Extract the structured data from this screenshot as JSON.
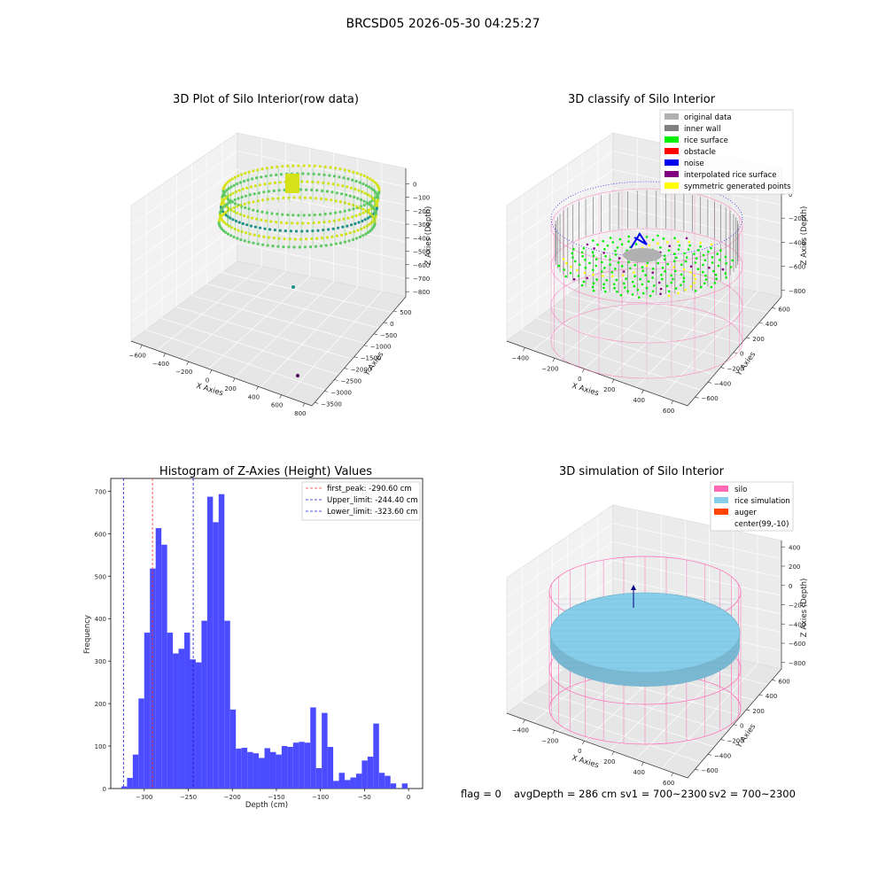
{
  "figure": {
    "title": "BRCSD05 2026-05-30 04:25:27",
    "footer": {
      "flag": "flag = 0",
      "avg_depth": "avgDepth = 286 cm",
      "sv1": "sv1 = 700~2300",
      "sv2": "sv2 = 700~2300"
    }
  },
  "colors": {
    "histogram_bar": "#4b4bff",
    "first_peak_line": "#ff3030",
    "limit_lines": "#1a1acc",
    "silo_wire": "#ff69b4",
    "rice_simulation": "#87ceeb",
    "auger": "#ff4500",
    "viridis_high": "#d5e21a",
    "viridis_mid": "#5ec962",
    "viridis_low": "#21918c",
    "viridis_min": "#440154"
  },
  "chart_data": [
    {
      "type": "scatter",
      "title": "3D Plot of Silo Interior(row data)",
      "xlabel": "X Axies",
      "ylabel": "Y Axies",
      "zlabel": "Z Axies (Depth)",
      "x_ticks": [
        "−600",
        "−400",
        "−200",
        "0",
        "200",
        "400",
        "600",
        "800"
      ],
      "y_ticks": [
        "500",
        "0",
        "−500",
        "−1000",
        "−1500",
        "−2000",
        "−2500",
        "−3000",
        "−3500"
      ],
      "z_ticks": [
        "0",
        "−100",
        "−200",
        "−300",
        "−400",
        "−500",
        "−600",
        "−700",
        "−800"
      ],
      "description_points": "ring of measured surface points near depth −100 to −300; two outliers near y −2500 and −3500"
    },
    {
      "type": "scatter",
      "title": "3D classify of Silo Interior",
      "xlabel": "X Axies",
      "ylabel": "Y Axies",
      "zlabel": "Z Axies (Depth)",
      "x_ticks": [
        "−400",
        "−200",
        "0",
        "200",
        "400",
        "600"
      ],
      "y_ticks": [
        "600",
        "400",
        "200",
        "0",
        "−200",
        "−400",
        "−600"
      ],
      "z_ticks": [
        "0",
        "−200",
        "−400",
        "−600",
        "−800"
      ],
      "legend": [
        {
          "label": "original data",
          "color": "#b0b0b0"
        },
        {
          "label": "inner wall",
          "color": "#808080"
        },
        {
          "label": "rice surface",
          "color": "#00ee00"
        },
        {
          "label": "obstacle",
          "color": "#ff0000"
        },
        {
          "label": "noise",
          "color": "#0000ee"
        },
        {
          "label": "interpolated rice surface",
          "color": "#800080"
        },
        {
          "label": "symmetric generated points",
          "color": "#ffff00"
        }
      ],
      "legend_position": "top-right"
    },
    {
      "type": "bar",
      "title": "Histogram of Z-Axies (Height) Values",
      "xlabel": "Depth (cm)",
      "ylabel": "Frequency",
      "xlim": [
        -338,
        16
      ],
      "ylim": [
        0,
        730
      ],
      "bin_start": -326,
      "bin_width": 6.5,
      "values": [
        5,
        25,
        80,
        212,
        367,
        518,
        613,
        574,
        367,
        318,
        329,
        367,
        304,
        297,
        395,
        687,
        627,
        693,
        395,
        186,
        94,
        96,
        86,
        83,
        72,
        95,
        86,
        80,
        100,
        98,
        108,
        110,
        108,
        191,
        48,
        178,
        98,
        18,
        37,
        20,
        26,
        35,
        66,
        75,
        153,
        37,
        30,
        12,
        0,
        12
      ],
      "x_ticks": [
        -300,
        -250,
        -200,
        -150,
        -100,
        -50,
        0
      ],
      "y_ticks": [
        0,
        100,
        200,
        300,
        400,
        500,
        600,
        700
      ],
      "vlines": [
        {
          "label": "first_peak: -290.60 cm",
          "x": -290.6,
          "color": "#ff3030"
        },
        {
          "label": "Upper_limit: -244.40 cm",
          "x": -244.4,
          "color": "#1a1acc"
        },
        {
          "label": "Lower_limit: -323.60 cm",
          "x": -323.6,
          "color": "#1a1acc"
        }
      ],
      "legend_position": "top-right"
    },
    {
      "type": "scatter",
      "title": "3D simulation of Silo Interior",
      "xlabel": "X Axies",
      "ylabel": "Y Axies",
      "zlabel": "Z Axies (Depth)",
      "x_ticks": [
        "−400",
        "−200",
        "0",
        "200",
        "400",
        "600"
      ],
      "y_ticks": [
        "600",
        "400",
        "200",
        "0",
        "−200",
        "−400",
        "−600"
      ],
      "z_ticks": [
        "400",
        "200",
        "0",
        "−200",
        "−400",
        "−600",
        "−800"
      ],
      "legend": [
        {
          "label": "silo",
          "color": "#ff69b4"
        },
        {
          "label": "rice simulation",
          "color": "#87ceeb"
        },
        {
          "label": "auger",
          "color": "#ff4500"
        },
        {
          "label": "center(99,-10)",
          "color": ""
        }
      ],
      "legend_position": "top-right"
    }
  ]
}
